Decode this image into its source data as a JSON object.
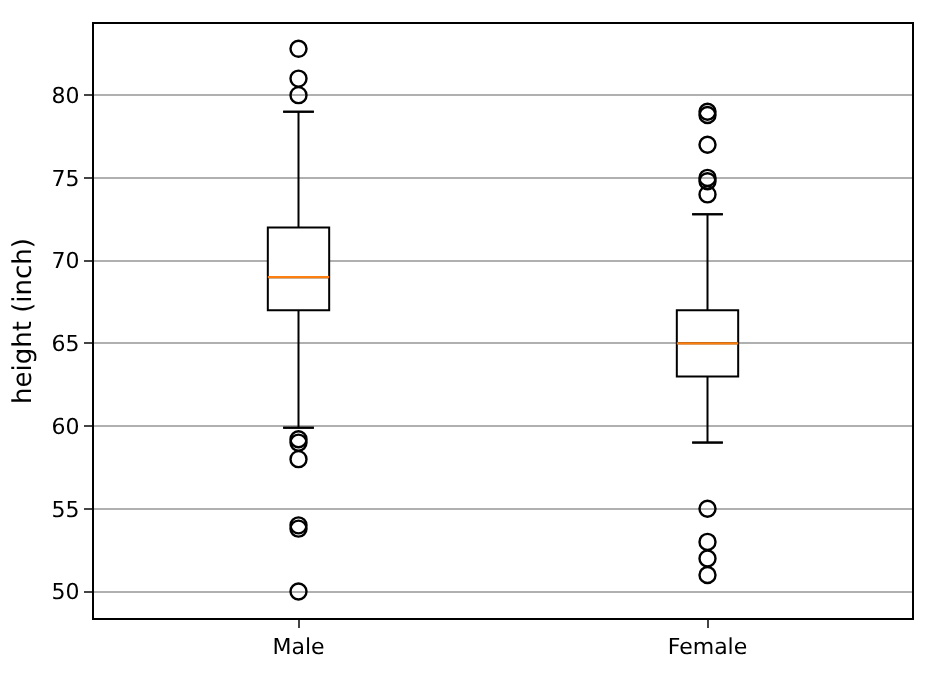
{
  "chart_data": {
    "type": "box",
    "ylabel": "height (inch)",
    "categories": [
      "Male",
      "Female"
    ],
    "boxes": [
      {
        "low": 59.9,
        "q1": 67,
        "median": 69,
        "q3": 72,
        "high": 79,
        "outliers": [
          82.8,
          81,
          80,
          59.2,
          59,
          58,
          54,
          53.8,
          50
        ]
      },
      {
        "low": 59,
        "q1": 63,
        "median": 65,
        "q3": 67,
        "high": 72.8,
        "outliers": [
          79,
          78.8,
          77,
          75,
          74.8,
          74,
          55,
          53,
          52,
          51
        ]
      }
    ],
    "ylim": [
      48.4,
      84.3
    ],
    "yticks": [
      50,
      55,
      60,
      65,
      70,
      75,
      80
    ],
    "grid": "y",
    "marker": "circle"
  }
}
